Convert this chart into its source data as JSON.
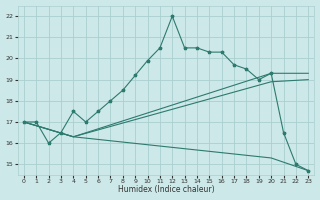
{
  "xlabel": "Humidex (Indice chaleur)",
  "xlim": [
    -0.5,
    23.5
  ],
  "ylim": [
    14.5,
    22.5
  ],
  "xticks": [
    0,
    1,
    2,
    3,
    4,
    5,
    6,
    7,
    8,
    9,
    10,
    11,
    12,
    13,
    14,
    15,
    16,
    17,
    18,
    19,
    20,
    21,
    22,
    23
  ],
  "yticks": [
    15,
    16,
    17,
    18,
    19,
    20,
    21,
    22
  ],
  "bg_color": "#cde8e8",
  "grid_color": "#aacfcf",
  "line_color": "#2d7a6e",
  "line1_x": [
    0,
    1,
    2,
    3,
    4,
    5,
    6,
    7,
    8,
    9,
    10,
    11,
    12,
    13,
    14,
    15,
    16,
    17,
    18,
    19,
    20,
    21,
    22,
    23
  ],
  "line1_y": [
    17.0,
    17.0,
    16.0,
    16.5,
    17.5,
    17.0,
    17.5,
    18.0,
    18.5,
    19.2,
    19.9,
    20.5,
    22.0,
    20.5,
    20.5,
    20.3,
    20.3,
    19.7,
    19.5,
    19.0,
    19.3,
    16.5,
    15.0,
    14.7
  ],
  "line2_x": [
    0,
    4,
    20,
    23
  ],
  "line2_y": [
    17.0,
    16.3,
    19.3,
    19.3
  ],
  "line3_x": [
    0,
    4,
    20,
    23
  ],
  "line3_y": [
    17.0,
    16.3,
    18.9,
    19.0
  ],
  "line4_x": [
    0,
    4,
    20,
    23
  ],
  "line4_y": [
    17.0,
    16.3,
    15.3,
    14.7
  ]
}
